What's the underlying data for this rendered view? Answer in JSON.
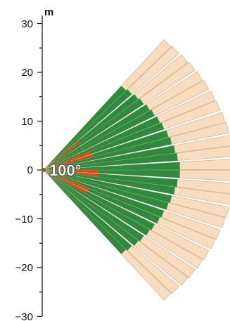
{
  "axis": {
    "unit": "m",
    "tick_labels": [
      "30",
      "20",
      "10",
      "0",
      "−10",
      "−20",
      "−30"
    ],
    "tick_values": [
      30,
      20,
      10,
      0,
      -10,
      -20,
      -30
    ]
  },
  "pattern": {
    "angle_label": "100°",
    "field_of_view_deg": 100,
    "colors": {
      "far_zone": "#f8dcc0",
      "far_zone_outline": "#c9a98a",
      "mid_zone": "#2e8b3d",
      "near_zone": "#dd4a10",
      "origin": "#8b5a2b"
    }
  }
}
